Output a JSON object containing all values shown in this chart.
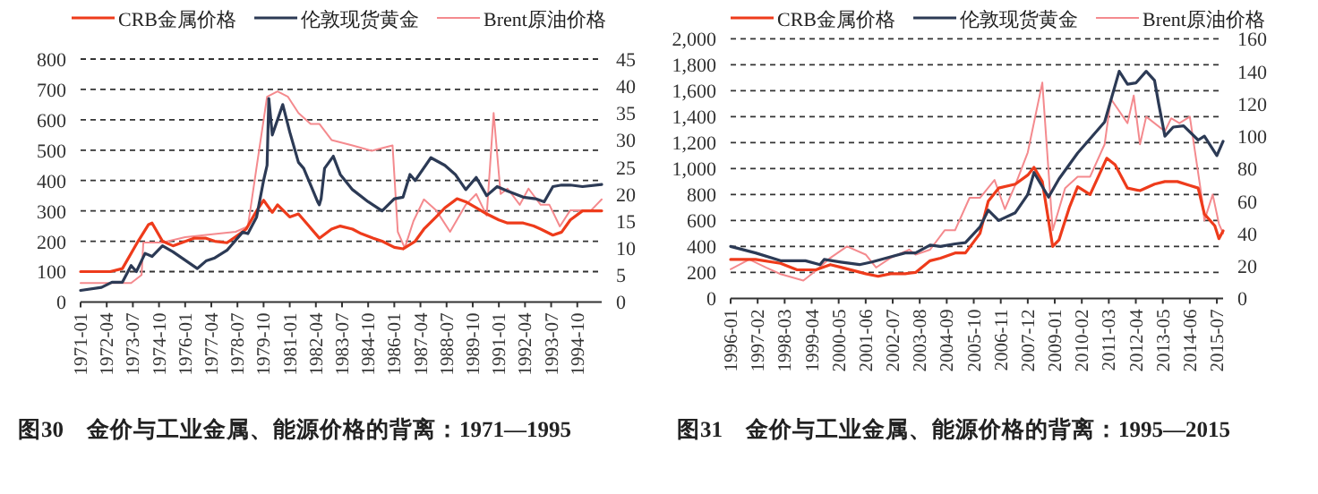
{
  "chart_data": [
    {
      "type": "line",
      "title": "图30　金价与工业金属、能源价格的背离：1971—1995",
      "legend": "top",
      "grid": "y",
      "xlim": [
        "1971-01",
        "1995-12"
      ],
      "xticks": [
        "1971-01",
        "1972-04",
        "1973-07",
        "1974-10",
        "1976-01",
        "1977-04",
        "1978-07",
        "1979-10",
        "1981-01",
        "1982-04",
        "1983-07",
        "1984-10",
        "1986-01",
        "1987-04",
        "1988-07",
        "1989-10",
        "1991-01",
        "1992-04",
        "1993-07",
        "1994-10"
      ],
      "ylim": [
        0,
        800
      ],
      "yticks": [
        0,
        100,
        200,
        300,
        400,
        500,
        600,
        700,
        800
      ],
      "y2lim": [
        0,
        45
      ],
      "y2ticks": [
        0,
        5,
        10,
        15,
        20,
        25,
        30,
        35,
        40,
        45
      ],
      "series": [
        {
          "name": "CRB金属价格",
          "color": "#ee3b1b",
          "x": [
            "1971-01",
            "1972-06",
            "1973-01",
            "1973-10",
            "1974-04",
            "1974-06",
            "1974-12",
            "1975-06",
            "1976-06",
            "1977-01",
            "1977-06",
            "1978-01",
            "1978-06",
            "1978-12",
            "1979-06",
            "1979-10",
            "1980-03",
            "1980-06",
            "1981-01",
            "1981-06",
            "1981-12",
            "1982-06",
            "1983-01",
            "1983-06",
            "1984-01",
            "1984-06",
            "1985-01",
            "1985-06",
            "1986-01",
            "1986-06",
            "1987-01",
            "1987-06",
            "1988-01",
            "1988-06",
            "1989-01",
            "1989-06",
            "1989-12",
            "1990-06",
            "1991-01",
            "1991-06",
            "1992-03",
            "1992-09",
            "1993-01",
            "1993-08",
            "1994-01",
            "1994-06",
            "1995-01",
            "1995-06",
            "1995-12"
          ],
          "values": [
            100,
            100,
            110,
            200,
            255,
            260,
            200,
            185,
            210,
            210,
            200,
            195,
            215,
            240,
            300,
            335,
            295,
            320,
            280,
            290,
            250,
            210,
            240,
            250,
            240,
            225,
            210,
            200,
            180,
            175,
            200,
            240,
            280,
            310,
            340,
            330,
            310,
            290,
            270,
            260,
            260,
            250,
            240,
            220,
            230,
            270,
            300,
            300,
            300
          ]
        },
        {
          "name": "伦敦现货黄金",
          "color": "#2c3a55",
          "x": [
            "1971-01",
            "1972-01",
            "1972-07",
            "1973-01",
            "1973-06",
            "1973-09",
            "1974-02",
            "1974-06",
            "1974-12",
            "1975-06",
            "1976-08",
            "1977-01",
            "1977-06",
            "1978-01",
            "1978-10",
            "1979-01",
            "1979-06",
            "1979-10",
            "1979-12",
            "1980-01",
            "1980-03",
            "1980-09",
            "1981-01",
            "1981-06",
            "1981-09",
            "1982-05",
            "1982-06",
            "1982-07",
            "1982-09",
            "1983-02",
            "1983-06",
            "1984-01",
            "1984-10",
            "1985-06",
            "1986-01",
            "1986-06",
            "1986-10",
            "1987-01",
            "1987-10",
            "1988-06",
            "1988-12",
            "1989-06",
            "1989-12",
            "1990-06",
            "1990-12",
            "1991-06",
            "1992-03",
            "1992-10",
            "1993-03",
            "1993-08",
            "1994-01",
            "1994-06",
            "1995-01",
            "1995-12"
          ],
          "values": [
            38,
            48,
            65,
            65,
            120,
            100,
            160,
            150,
            185,
            165,
            110,
            135,
            145,
            170,
            230,
            225,
            280,
            400,
            450,
            670,
            550,
            650,
            560,
            460,
            440,
            330,
            320,
            340,
            440,
            480,
            420,
            370,
            330,
            300,
            340,
            345,
            420,
            400,
            475,
            450,
            420,
            370,
            410,
            350,
            380,
            365,
            345,
            340,
            330,
            380,
            385,
            385,
            380,
            387
          ]
        },
        {
          "name": "Brent原油价格",
          "color": "#f48a8e",
          "axis": "y2",
          "x": [
            "1971-01",
            "1973-06",
            "1973-12",
            "1974-01",
            "1974-12",
            "1976-01",
            "1978-06",
            "1979-01",
            "1979-06",
            "1979-12",
            "1980-06",
            "1980-12",
            "1981-06",
            "1982-01",
            "1982-06",
            "1983-01",
            "1984-01",
            "1984-12",
            "1985-12",
            "1986-03",
            "1986-07",
            "1986-12",
            "1987-06",
            "1988-01",
            "1988-09",
            "1989-06",
            "1989-12",
            "1990-06",
            "1990-10",
            "1991-02",
            "1991-06",
            "1992-01",
            "1992-06",
            "1993-01",
            "1993-06",
            "1993-12",
            "1994-06",
            "1995-01",
            "1995-06",
            "1995-12"
          ],
          "values": [
            3.5,
            3.5,
            5,
            11,
            11,
            12,
            13,
            14,
            25,
            38,
            39,
            38,
            35,
            33,
            33,
            30,
            29,
            28,
            29,
            13,
            10,
            15,
            19,
            17,
            13,
            18,
            20,
            16,
            35,
            20,
            21,
            18,
            21,
            18,
            18,
            14,
            17,
            17,
            17,
            19
          ]
        }
      ]
    },
    {
      "type": "line",
      "title": "图31　金价与工业金属、能源价格的背离：1995—2015",
      "legend": "top",
      "grid": "y",
      "xlim": [
        "1996-01",
        "2015-10"
      ],
      "xticks": [
        "1996-01",
        "1997-02",
        "1998-03",
        "1999-04",
        "2000-05",
        "2001-06",
        "2002-07",
        "2003-08",
        "2004-09",
        "2005-10",
        "2006-11",
        "2007-12",
        "2009-01",
        "2010-02",
        "2011-03",
        "2012-04",
        "2013-05",
        "2014-06",
        "2015-07"
      ],
      "ylim": [
        0,
        2000
      ],
      "yticks": [
        0,
        200,
        400,
        600,
        800,
        {
          "value": 1000,
          "label": "1,000"
        },
        {
          "value": 1200,
          "label": "1,200"
        },
        {
          "value": 1400,
          "label": "1,400"
        },
        {
          "value": 1600,
          "label": "1,600"
        },
        {
          "value": 1800,
          "label": "1,800"
        },
        {
          "value": 2000,
          "label": "2,000"
        }
      ],
      "y2lim": [
        0,
        160
      ],
      "y2ticks": [
        0,
        20,
        40,
        60,
        80,
        100,
        120,
        140,
        160
      ],
      "series": [
        {
          "name": "CRB金属价格",
          "color": "#ee3b1b",
          "x": [
            "1996-01",
            "1997-01",
            "1998-01",
            "1998-09",
            "1999-06",
            "2000-01",
            "2000-06",
            "2001-06",
            "2001-12",
            "2002-06",
            "2003-01",
            "2003-06",
            "2004-01",
            "2004-06",
            "2005-01",
            "2005-06",
            "2006-01",
            "2006-05",
            "2006-10",
            "2007-06",
            "2007-12",
            "2008-03",
            "2008-07",
            "2008-12",
            "2009-03",
            "2009-08",
            "2009-12",
            "2010-06",
            "2011-02",
            "2011-06",
            "2011-12",
            "2012-06",
            "2013-01",
            "2013-06",
            "2013-12",
            "2014-06",
            "2014-10",
            "2015-01",
            "2015-06",
            "2015-08",
            "2015-10"
          ],
          "values": [
            300,
            300,
            270,
            220,
            220,
            260,
            240,
            190,
            170,
            190,
            190,
            200,
            290,
            310,
            350,
            350,
            500,
            750,
            850,
            880,
            950,
            1010,
            900,
            400,
            450,
            700,
            860,
            800,
            1080,
            1030,
            850,
            830,
            880,
            900,
            900,
            870,
            850,
            650,
            560,
            460,
            520
          ]
        },
        {
          "name": "伦敦现货黄金",
          "color": "#2c3a55",
          "x": [
            "1996-01",
            "1997-01",
            "1998-01",
            "1999-01",
            "1999-08",
            "1999-10",
            "2000-06",
            "2001-03",
            "2001-09",
            "2002-06",
            "2003-01",
            "2003-06",
            "2004-01",
            "2004-06",
            "2005-01",
            "2005-06",
            "2006-01",
            "2006-05",
            "2006-10",
            "2007-06",
            "2007-12",
            "2008-03",
            "2008-10",
            "2009-03",
            "2009-12",
            "2010-06",
            "2011-01",
            "2011-08",
            "2011-12",
            "2012-04",
            "2012-09",
            "2013-01",
            "2013-03",
            "2013-06",
            "2013-10",
            "2014-03",
            "2014-10",
            "2015-01",
            "2015-07",
            "2015-10"
          ],
          "values": [
            400,
            350,
            290,
            290,
            260,
            300,
            280,
            260,
            280,
            320,
            350,
            350,
            410,
            400,
            420,
            430,
            550,
            680,
            600,
            660,
            800,
            970,
            780,
            920,
            1120,
            1230,
            1360,
            1750,
            1650,
            1660,
            1750,
            1680,
            1500,
            1250,
            1320,
            1330,
            1220,
            1250,
            1100,
            1210
          ]
        },
        {
          "name": "Brent原油价格",
          "color": "#f48a8e",
          "axis": "y2",
          "x": [
            "1996-01",
            "1996-10",
            "1997-06",
            "1998-01",
            "1998-12",
            "1999-06",
            "2000-01",
            "2000-09",
            "2001-06",
            "2001-11",
            "2002-06",
            "2003-03",
            "2003-06",
            "2004-01",
            "2004-08",
            "2005-01",
            "2005-08",
            "2006-01",
            "2006-08",
            "2007-01",
            "2007-06",
            "2007-12",
            "2008-07",
            "2008-12",
            "2009-06",
            "2009-12",
            "2010-06",
            "2011-01",
            "2011-04",
            "2011-12",
            "2012-03",
            "2012-06",
            "2012-09",
            "2013-06",
            "2013-09",
            "2014-01",
            "2014-06",
            "2014-12",
            "2015-01",
            "2015-05",
            "2015-08",
            "2015-10"
          ],
          "values": [
            18,
            24,
            19,
            15,
            11,
            17,
            25,
            32,
            27,
            19,
            25,
            30,
            27,
            30,
            42,
            42,
            62,
            62,
            73,
            55,
            70,
            90,
            133,
            42,
            68,
            75,
            75,
            95,
            123,
            108,
            125,
            95,
            112,
            103,
            111,
            108,
            112,
            60,
            48,
            64,
            46,
            40
          ]
        }
      ]
    }
  ]
}
